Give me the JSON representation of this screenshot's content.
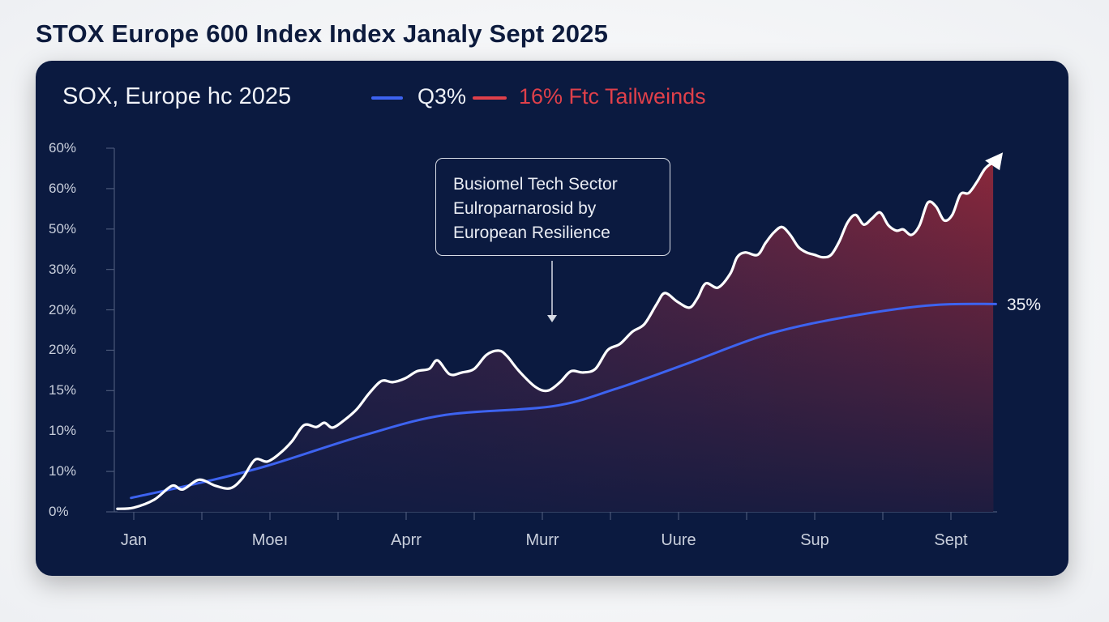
{
  "page_title": "STOX Europe 600 Index Index Janaly Sept 2025",
  "chart_data": {
    "type": "area",
    "title": "SOX, Europe hc 2025",
    "legend": [
      {
        "label": "Q3%",
        "color": "#3d63f0"
      },
      {
        "label": "16% Ftc Tailweinds",
        "color": "#e0404a"
      }
    ],
    "legend_placement": "top",
    "xlabel": "",
    "ylabel": "",
    "x_tick_labels": [
      "Jan",
      "Moeı",
      "Aprr",
      "Murr",
      "Uure",
      "Sup",
      "Sept"
    ],
    "y_tick_labels": [
      "60%",
      "60%",
      "50%",
      "30%",
      "20%",
      "20%",
      "15%",
      "10%",
      "10%",
      "0%"
    ],
    "ylim": [
      0,
      60
    ],
    "grid": false,
    "annotation": {
      "lines": [
        "Busiomel Tech Sector",
        "Eulroparnarosid by",
        "European Resilience"
      ]
    },
    "end_label": "35%",
    "series": [
      {
        "color": "#ffffff",
        "fill_colors": [
          "#8e2a3c",
          "#0b1a40"
        ],
        "x": [
          -0.12,
          0,
          0.15,
          0.28,
          0.36,
          0.48,
          0.6,
          0.71,
          0.8,
          0.89,
          0.98,
          1.07,
          1.16,
          1.25,
          1.34,
          1.4,
          1.46,
          1.55,
          1.64,
          1.73,
          1.82,
          1.9,
          1.99,
          2.08,
          2.17,
          2.23,
          2.32,
          2.41,
          2.5,
          2.59,
          2.68,
          2.74,
          2.83,
          2.95,
          3.04,
          3.13,
          3.21,
          3.3,
          3.39,
          3.48,
          3.57,
          3.66,
          3.75,
          3.84,
          3.9,
          3.99,
          4.08,
          4.14,
          4.2,
          4.29,
          4.38,
          4.43,
          4.49,
          4.58,
          4.64,
          4.7,
          4.76,
          4.82,
          4.88,
          4.94,
          5.0,
          5.06,
          5.12,
          5.18,
          5.24,
          5.3,
          5.36,
          5.42,
          5.48,
          5.54,
          5.6,
          5.65,
          5.71,
          5.77,
          5.83,
          5.89,
          5.95,
          6.01,
          6.07,
          6.13,
          6.19,
          6.25,
          6.31
        ],
        "y": [
          0.5,
          0.7,
          2.0,
          4.3,
          3.7,
          5.3,
          4.3,
          3.9,
          5.6,
          8.6,
          8.3,
          9.6,
          11.6,
          14.3,
          14.0,
          14.7,
          13.9,
          15.2,
          17.0,
          19.6,
          21.6,
          21.4,
          22.0,
          23.2,
          23.6,
          25.0,
          22.7,
          23.0,
          23.6,
          25.9,
          26.6,
          25.7,
          23.2,
          20.6,
          20.0,
          21.4,
          23.2,
          23.0,
          23.6,
          26.7,
          27.7,
          29.7,
          31.0,
          34.3,
          36.1,
          34.7,
          33.7,
          35.3,
          37.7,
          37.0,
          39.3,
          42.0,
          42.8,
          42.4,
          44.4,
          46.1,
          47.0,
          45.7,
          43.7,
          42.8,
          42.4,
          42.0,
          42.4,
          44.6,
          47.7,
          49.0,
          47.4,
          48.4,
          49.4,
          47.3,
          46.4,
          46.6,
          45.7,
          47.3,
          51.0,
          50.4,
          48.1,
          49.0,
          52.4,
          52.6,
          54.4,
          56.6,
          57.7
        ]
      },
      {
        "color": "#3d63f0",
        "x": [
          -0.02,
          0.51,
          0.98,
          1.7,
          2.29,
          3.07,
          3.54,
          4.08,
          4.67,
          5.27,
          5.86,
          6.33
        ],
        "y": [
          2.3,
          4.9,
          7.6,
          12.7,
          16.0,
          17.4,
          20.3,
          24.6,
          29.4,
          32.3,
          34.1,
          34.3
        ]
      }
    ]
  }
}
